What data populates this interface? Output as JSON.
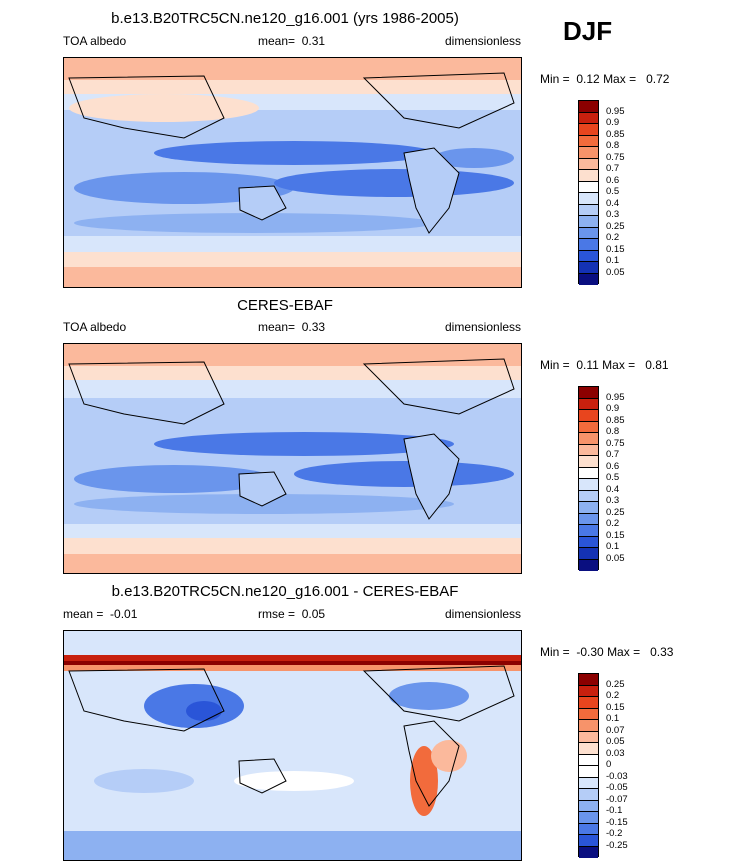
{
  "season": "DJF",
  "chart_data": [
    {
      "type": "heatmap",
      "title": "b.e13.B20TRC5CN.ne120_g16.001 (yrs 1986-2005)",
      "left_label": "TOA albedo",
      "center_label": "mean=",
      "center_value": "0.31",
      "right_label": "dimensionless",
      "min_label": "Min =",
      "min_value": "0.12",
      "max_label": "Max =",
      "max_value": "0.72",
      "colorbar_levels": [
        "0.95",
        "0.9",
        "0.85",
        "0.8",
        "0.75",
        "0.7",
        "0.6",
        "0.5",
        "0.4",
        "0.3",
        "0.25",
        "0.2",
        "0.15",
        "0.1",
        "0.05"
      ],
      "colorbar_colors": [
        "#8b0000",
        "#c8200e",
        "#e8451e",
        "#f26b3c",
        "#f7936a",
        "#fbb99c",
        "#fde0cf",
        "#ffffff",
        "#d8e6fb",
        "#b5cdf7",
        "#8db1f1",
        "#6a95ec",
        "#4a78e6",
        "#2a55d8",
        "#1432b4",
        "#0a0f80"
      ]
    },
    {
      "type": "heatmap",
      "title": "CERES-EBAF",
      "left_label": "TOA albedo",
      "center_label": "mean=",
      "center_value": "0.33",
      "right_label": "dimensionless",
      "min_label": "Min =",
      "min_value": "0.11",
      "max_label": "Max =",
      "max_value": "0.81",
      "colorbar_levels": [
        "0.95",
        "0.9",
        "0.85",
        "0.8",
        "0.75",
        "0.7",
        "0.6",
        "0.5",
        "0.4",
        "0.3",
        "0.25",
        "0.2",
        "0.15",
        "0.1",
        "0.05"
      ],
      "colorbar_colors": [
        "#8b0000",
        "#c8200e",
        "#e8451e",
        "#f26b3c",
        "#f7936a",
        "#fbb99c",
        "#fde0cf",
        "#ffffff",
        "#d8e6fb",
        "#b5cdf7",
        "#8db1f1",
        "#6a95ec",
        "#4a78e6",
        "#2a55d8",
        "#1432b4",
        "#0a0f80"
      ]
    },
    {
      "type": "heatmap",
      "title": "b.e13.B20TRC5CN.ne120_g16.001 - CERES-EBAF",
      "left_label": "mean =",
      "left_value": "-0.01",
      "center_label": "rmse =",
      "center_value": "0.05",
      "right_label": "dimensionless",
      "min_label": "Min =",
      "min_value": "-0.30",
      "max_label": "Max =",
      "max_value": "0.33",
      "colorbar_levels": [
        "0.25",
        "0.2",
        "0.15",
        "0.1",
        "0.07",
        "0.05",
        "0.03",
        "0",
        "-0.03",
        "-0.05",
        "-0.07",
        "-0.1",
        "-0.15",
        "-0.2",
        "-0.25"
      ],
      "colorbar_colors": [
        "#8b0000",
        "#c8200e",
        "#e8451e",
        "#f26b3c",
        "#f7936a",
        "#fbb99c",
        "#fde0cf",
        "#ffffff",
        "#ffffff",
        "#d8e6fb",
        "#b5cdf7",
        "#8db1f1",
        "#6a95ec",
        "#4a78e6",
        "#2a55d8",
        "#0a0f80"
      ]
    }
  ]
}
